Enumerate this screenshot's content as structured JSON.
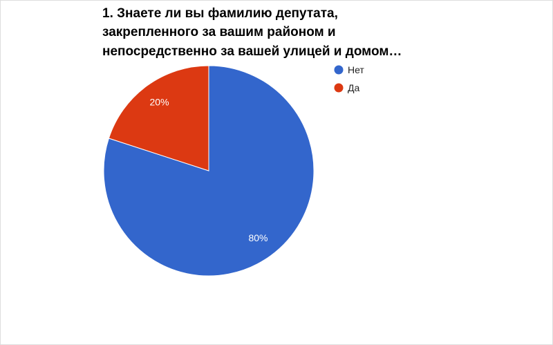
{
  "chart_data": {
    "type": "pie",
    "title": [
      "1. Знаете ли вы фамилию депутата,",
      "закрепленного за вашим районом и",
      "непосредственно за вашей улицей и домом…"
    ],
    "categories": [
      "Нет",
      "Да"
    ],
    "values": [
      80,
      20
    ],
    "value_labels": [
      "80%",
      "20%"
    ],
    "colors": [
      "#3366cc",
      "#dc3912"
    ],
    "legend": "right"
  }
}
